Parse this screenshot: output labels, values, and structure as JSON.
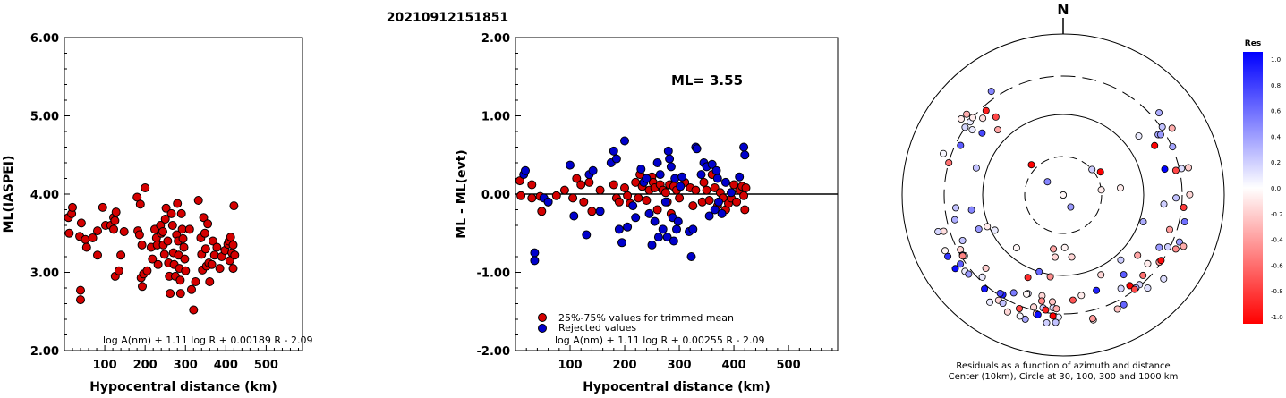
{
  "header": {
    "event_id": "20210912151851"
  },
  "chart_data": [
    {
      "type": "scatter",
      "ylabel": "ML(IASPEI)",
      "xlabel": "Hypocentral distance (km)",
      "xlim": [
        0,
        590
      ],
      "ylim": [
        2.0,
        6.0
      ],
      "xticks": [
        100,
        200,
        300,
        400,
        500
      ],
      "yticks": [
        "2.00",
        "3.00",
        "4.00",
        "5.00",
        "6.00"
      ],
      "formula": "log A(nm) + 1.11 log R + 0.00189 R - 2.09",
      "marker_color": "#d40000",
      "points": [
        [
          10,
          3.7
        ],
        [
          12,
          3.5
        ],
        [
          18,
          3.75
        ],
        [
          20,
          3.83
        ],
        [
          42,
          3.63
        ],
        [
          38,
          3.46
        ],
        [
          40,
          2.77
        ],
        [
          40,
          2.65
        ],
        [
          52,
          3.42
        ],
        [
          55,
          3.32
        ],
        [
          70,
          3.44
        ],
        [
          82,
          3.53
        ],
        [
          82,
          3.22
        ],
        [
          95,
          3.83
        ],
        [
          102,
          3.6
        ],
        [
          115,
          3.6
        ],
        [
          122,
          3.7
        ],
        [
          122,
          3.55
        ],
        [
          125,
          3.66
        ],
        [
          126,
          2.95
        ],
        [
          128,
          3.77
        ],
        [
          135,
          3.02
        ],
        [
          140,
          3.22
        ],
        [
          148,
          3.52
        ],
        [
          180,
          3.96
        ],
        [
          182,
          3.53
        ],
        [
          186,
          3.48
        ],
        [
          188,
          3.87
        ],
        [
          190,
          2.93
        ],
        [
          192,
          3.35
        ],
        [
          193,
          2.82
        ],
        [
          196,
          2.98
        ],
        [
          200,
          4.08
        ],
        [
          205,
          3.02
        ],
        [
          215,
          3.32
        ],
        [
          218,
          3.17
        ],
        [
          224,
          3.55
        ],
        [
          228,
          3.44
        ],
        [
          230,
          3.35
        ],
        [
          232,
          3.1
        ],
        [
          238,
          3.6
        ],
        [
          240,
          3.5
        ],
        [
          244,
          3.52
        ],
        [
          245,
          3.35
        ],
        [
          248,
          3.23
        ],
        [
          250,
          3.68
        ],
        [
          252,
          3.82
        ],
        [
          256,
          3.4
        ],
        [
          258,
          3.12
        ],
        [
          260,
          2.95
        ],
        [
          262,
          2.73
        ],
        [
          265,
          3.75
        ],
        [
          268,
          3.6
        ],
        [
          270,
          3.25
        ],
        [
          272,
          3.1
        ],
        [
          275,
          2.95
        ],
        [
          278,
          3.48
        ],
        [
          280,
          3.88
        ],
        [
          282,
          3.4
        ],
        [
          283,
          3.22
        ],
        [
          285,
          3.05
        ],
        [
          287,
          2.9
        ],
        [
          288,
          2.73
        ],
        [
          290,
          3.75
        ],
        [
          292,
          3.55
        ],
        [
          294,
          3.43
        ],
        [
          296,
          3.32
        ],
        [
          298,
          3.17
        ],
        [
          300,
          3.02
        ],
        [
          310,
          3.55
        ],
        [
          315,
          2.78
        ],
        [
          320,
          2.52
        ],
        [
          325,
          2.88
        ],
        [
          332,
          3.92
        ],
        [
          338,
          3.44
        ],
        [
          340,
          3.23
        ],
        [
          342,
          3.03
        ],
        [
          345,
          3.7
        ],
        [
          348,
          3.5
        ],
        [
          350,
          3.3
        ],
        [
          352,
          3.08
        ],
        [
          355,
          3.62
        ],
        [
          358,
          3.12
        ],
        [
          360,
          2.88
        ],
        [
          365,
          3.1
        ],
        [
          368,
          3.4
        ],
        [
          372,
          3.22
        ],
        [
          378,
          3.32
        ],
        [
          385,
          3.05
        ],
        [
          390,
          3.2
        ],
        [
          398,
          3.28
        ],
        [
          405,
          3.36
        ],
        [
          408,
          3.4
        ],
        [
          410,
          3.15
        ],
        [
          412,
          3.45
        ],
        [
          415,
          3.25
        ],
        [
          418,
          3.35
        ],
        [
          418,
          3.05
        ],
        [
          420,
          3.85
        ],
        [
          422,
          3.22
        ]
      ]
    },
    {
      "type": "scatter",
      "ylabel": "ML - ML(evt)",
      "xlabel": "Hypocentral distance (km)",
      "xlim": [
        0,
        590
      ],
      "ylim": [
        -2.0,
        2.0
      ],
      "xticks": [
        100,
        200,
        300,
        400,
        500
      ],
      "yticks": [
        "-2.00",
        "-1.00",
        "0.00",
        "1.00",
        "2.00"
      ],
      "ml_label": "ML=",
      "ml_value": "3.55",
      "formula": "log A(nm) + 1.11 log R + 0.00255 R - 2.09",
      "legend": [
        "25%-75% values for trimmed mean",
        "Rejected values"
      ],
      "series": [
        {
          "color": "#d40000",
          "points": [
            [
              8,
              0.17
            ],
            [
              10,
              -0.02
            ],
            [
              30,
              0.12
            ],
            [
              30,
              -0.05
            ],
            [
              45,
              -0.03
            ],
            [
              48,
              -0.22
            ],
            [
              60,
              -0.1
            ],
            [
              75,
              -0.02
            ],
            [
              90,
              0.05
            ],
            [
              105,
              -0.05
            ],
            [
              112,
              0.2
            ],
            [
              120,
              0.12
            ],
            [
              125,
              -0.1
            ],
            [
              135,
              0.15
            ],
            [
              140,
              -0.22
            ],
            [
              155,
              0.05
            ],
            [
              180,
              0.12
            ],
            [
              185,
              -0.05
            ],
            [
              190,
              -0.1
            ],
            [
              200,
              0.08
            ],
            [
              205,
              -0.02
            ],
            [
              210,
              -0.12
            ],
            [
              220,
              0.15
            ],
            [
              225,
              -0.05
            ],
            [
              228,
              0.25
            ],
            [
              232,
              0.1
            ],
            [
              240,
              -0.08
            ],
            [
              245,
              0.05
            ],
            [
              250,
              0.22
            ],
            [
              252,
              0.15
            ],
            [
              255,
              0.08
            ],
            [
              260,
              -0.2
            ],
            [
              265,
              0.12
            ],
            [
              270,
              0.05
            ],
            [
              275,
              0.02
            ],
            [
              278,
              -0.1
            ],
            [
              282,
              0.12
            ],
            [
              285,
              -0.25
            ],
            [
              290,
              0.1
            ],
            [
              295,
              0.05
            ],
            [
              300,
              -0.05
            ],
            [
              310,
              0.15
            ],
            [
              320,
              0.08
            ],
            [
              325,
              -0.15
            ],
            [
              330,
              0.05
            ],
            [
              342,
              -0.1
            ],
            [
              345,
              0.15
            ],
            [
              350,
              0.05
            ],
            [
              355,
              -0.08
            ],
            [
              360,
              0.25
            ],
            [
              365,
              0.08
            ],
            [
              370,
              -0.15
            ],
            [
              375,
              0.02
            ],
            [
              380,
              -0.05
            ],
            [
              385,
              -0.2
            ],
            [
              390,
              -0.12
            ],
            [
              395,
              -0.05
            ],
            [
              400,
              0.12
            ],
            [
              405,
              -0.1
            ],
            [
              410,
              0.05
            ],
            [
              415,
              0.1
            ],
            [
              418,
              -0.02
            ],
            [
              420,
              -0.2
            ],
            [
              422,
              0.08
            ]
          ]
        },
        {
          "color": "#0000cc",
          "points": [
            [
              15,
              0.25
            ],
            [
              18,
              0.3
            ],
            [
              35,
              -0.75
            ],
            [
              35,
              -0.85
            ],
            [
              52,
              -0.05
            ],
            [
              60,
              -0.1
            ],
            [
              100,
              0.37
            ],
            [
              107,
              -0.28
            ],
            [
              130,
              -0.52
            ],
            [
              135,
              0.25
            ],
            [
              142,
              0.3
            ],
            [
              155,
              -0.22
            ],
            [
              175,
              0.4
            ],
            [
              180,
              0.55
            ],
            [
              185,
              0.45
            ],
            [
              190,
              -0.45
            ],
            [
              195,
              -0.62
            ],
            [
              200,
              0.68
            ],
            [
              205,
              -0.42
            ],
            [
              215,
              -0.15
            ],
            [
              220,
              -0.3
            ],
            [
              230,
              0.32
            ],
            [
              235,
              0.15
            ],
            [
              240,
              0.2
            ],
            [
              245,
              -0.25
            ],
            [
              250,
              -0.65
            ],
            [
              255,
              -0.35
            ],
            [
              260,
              0.4
            ],
            [
              262,
              -0.55
            ],
            [
              265,
              0.25
            ],
            [
              270,
              -0.45
            ],
            [
              275,
              -0.1
            ],
            [
              278,
              -0.55
            ],
            [
              280,
              0.55
            ],
            [
              282,
              0.45
            ],
            [
              285,
              0.35
            ],
            [
              288,
              -0.3
            ],
            [
              290,
              -0.6
            ],
            [
              292,
              0.2
            ],
            [
              295,
              -0.45
            ],
            [
              298,
              -0.35
            ],
            [
              302,
              0.1
            ],
            [
              305,
              0.22
            ],
            [
              318,
              -0.48
            ],
            [
              322,
              -0.8
            ],
            [
              325,
              -0.45
            ],
            [
              330,
              0.6
            ],
            [
              332,
              0.58
            ],
            [
              340,
              0.25
            ],
            [
              345,
              0.4
            ],
            [
              350,
              0.35
            ],
            [
              355,
              -0.28
            ],
            [
              360,
              0.38
            ],
            [
              365,
              -0.2
            ],
            [
              368,
              0.3
            ],
            [
              370,
              0.2
            ],
            [
              372,
              -0.1
            ],
            [
              378,
              -0.25
            ],
            [
              385,
              0.15
            ],
            [
              395,
              0.02
            ],
            [
              410,
              0.22
            ],
            [
              418,
              0.6
            ],
            [
              420,
              0.5
            ]
          ]
        }
      ]
    },
    {
      "type": "polar",
      "north_label": "N",
      "caption_line1": "Residuals as a function of azimuth and distance",
      "caption_line2": "Center (10km), Circle at 30, 100, 300 and 1000 km",
      "colorbar_title": "Res",
      "colorbar_labels": [
        "1.0",
        "0.8",
        "0.6",
        "0.4",
        "0.2",
        "0.0",
        "-0.2",
        "-0.4",
        "-0.6",
        "-0.8",
        "-1.0"
      ],
      "points_res_range": [
        -1.0,
        1.0
      ]
    }
  ]
}
